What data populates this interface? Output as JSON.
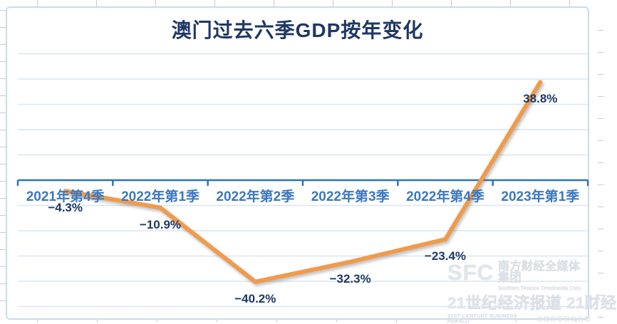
{
  "chart_data": {
    "type": "line",
    "title": "澳门过去六季GDP按年变化",
    "categories": [
      "2021年第4季",
      "2022年第1季",
      "2022年第2季",
      "2022年第3季",
      "2022年第4季",
      "2023年第1季"
    ],
    "values": [
      -4.3,
      -10.9,
      -40.2,
      -32.3,
      -23.4,
      38.8
    ],
    "data_labels": [
      "−4.3%",
      "−10.9%",
      "−40.2%",
      "−32.3%",
      "−23.4%",
      "38.8%"
    ],
    "unit": "%",
    "ylim": [
      -50,
      50
    ],
    "grid_step": 10,
    "grid": "horizontal-only",
    "value_axis_labels": "hidden",
    "category_axis_position": "zero",
    "legend": "none"
  },
  "colors": {
    "line": "#F09B4C",
    "line_shadow": "rgba(110,110,110,0.45)",
    "axis": "#2E74B5",
    "gridline": "#D9E6F2",
    "title_text": "#1F3864",
    "data_label_text": "#1F3864",
    "category_text": "#3B78BE",
    "frame_border": "#CCDBE8",
    "sheet_gridline": "#C3CBD3"
  },
  "watermark": {
    "logo": "SFC",
    "company_cn": "南方财经全媒体集团",
    "company_en": "Southern Finance Omnimedia Corp.",
    "brand_cn": "21世纪经济报道 21财经",
    "brand_en": "21ST CENTURY BUSINESS HERALD",
    "dots": "▢▢▢▢▢▢▢▢"
  }
}
